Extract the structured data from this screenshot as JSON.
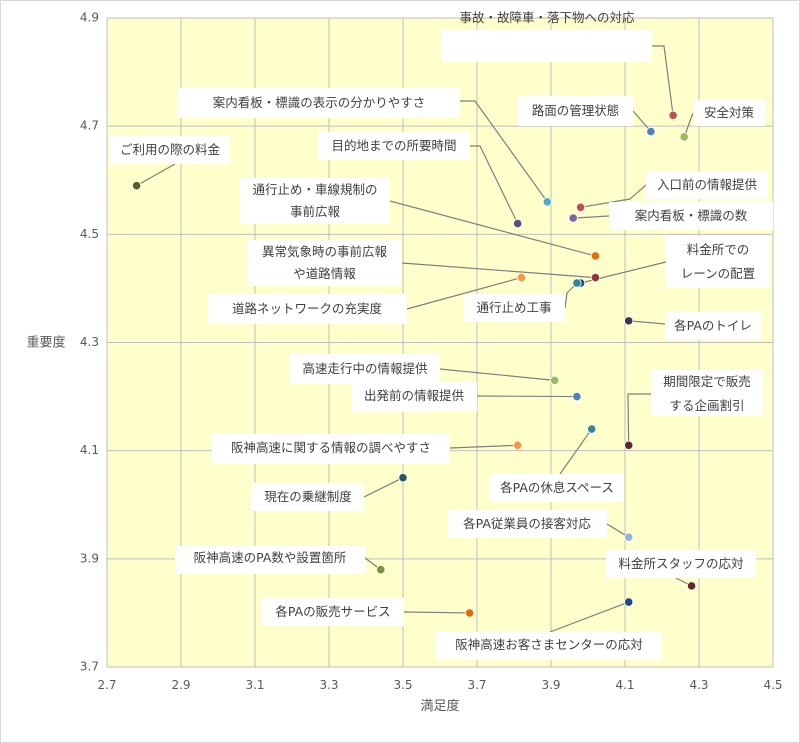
{
  "chart_data": {
    "type": "scatter",
    "xlabel": "満足度",
    "ylabel": "重要度",
    "xlim": [
      2.7,
      4.5
    ],
    "ylim": [
      3.7,
      4.9
    ],
    "x_ticks": [
      "2.7",
      "2.9",
      "3.1",
      "3.3",
      "3.5",
      "3.7",
      "3.9",
      "4.1",
      "4.3",
      "4.5"
    ],
    "y_ticks": [
      "3.7",
      "3.9",
      "4.1",
      "4.3",
      "4.5",
      "4.7",
      "4.9"
    ],
    "grid": true,
    "plot_background": "#ffffcc",
    "points": [
      {
        "label": "事故・故障車・落下物への対応",
        "x": 4.23,
        "y": 4.72,
        "color": "#c0504d"
      },
      {
        "label": "路面の管理状態",
        "x": 4.17,
        "y": 4.69,
        "color": "#4f81bd"
      },
      {
        "label": "安全対策",
        "x": 4.26,
        "y": 4.68,
        "color": "#9bbb59"
      },
      {
        "label": "案内看板・標識の表示の分かりやすさ",
        "x": 3.89,
        "y": 4.56,
        "color": "#4bacc6"
      },
      {
        "label": "ご利用の際の料金",
        "x": 2.78,
        "y": 4.59,
        "color": "#4f6228"
      },
      {
        "label": "目的地までの所要時間",
        "x": 3.81,
        "y": 4.52,
        "color": "#604a7b"
      },
      {
        "label": "入口前の情報提供",
        "x": 3.98,
        "y": 4.55,
        "color": "#c0504d"
      },
      {
        "label": "案内看板・標識の数",
        "x": 3.96,
        "y": 4.53,
        "color": "#8064a2"
      },
      {
        "label": "通行止め・車線規制の事前広報",
        "x": 4.02,
        "y": 4.46,
        "color": "#e36c09"
      },
      {
        "label": "異常気象時の事前広報や道路情報",
        "x": 4.02,
        "y": 4.42,
        "color": "#943634"
      },
      {
        "label": "料金所でのレーンの配置",
        "x": 3.98,
        "y": 4.41,
        "color": "#1f497d"
      },
      {
        "label": "道路ネットワークの充実度",
        "x": 3.82,
        "y": 4.42,
        "color": "#f79646"
      },
      {
        "label": "通行止め工事",
        "x": 3.97,
        "y": 4.41,
        "color": "#31859c"
      },
      {
        "label": "各PAのトイレ",
        "x": 4.11,
        "y": 4.34,
        "color": "#3f3151"
      },
      {
        "label": "高速走行中の情報提供",
        "x": 3.91,
        "y": 4.23,
        "color": "#9bbb59"
      },
      {
        "label": "出発前の情報提供",
        "x": 3.97,
        "y": 4.2,
        "color": "#4f81bd"
      },
      {
        "label": "期間限定で販売する企画割引",
        "x": 4.11,
        "y": 4.11,
        "color": "#632523"
      },
      {
        "label": "各PAの休息スペース",
        "x": 4.01,
        "y": 4.14,
        "color": "#31859c"
      },
      {
        "label": "阪神高速に関する情報の調べやすさ",
        "x": 3.81,
        "y": 4.11,
        "color": "#f79646"
      },
      {
        "label": "現在の乗継制度",
        "x": 3.5,
        "y": 4.05,
        "color": "#215968"
      },
      {
        "label": "各PA従業員の接客対応",
        "x": 4.11,
        "y": 3.94,
        "color": "#95b3d7"
      },
      {
        "label": "阪神高速のPA数や設置箇所",
        "x": 3.44,
        "y": 3.88,
        "color": "#76923c"
      },
      {
        "label": "料金所スタッフの応対",
        "x": 4.28,
        "y": 3.85,
        "color": "#632523"
      },
      {
        "label": "各PAの販売サービス",
        "x": 3.68,
        "y": 3.8,
        "color": "#e36c09"
      },
      {
        "label": "阪神高速お客さまセンターの応対",
        "x": 4.11,
        "y": 3.82,
        "color": "#1f497d"
      }
    ]
  }
}
